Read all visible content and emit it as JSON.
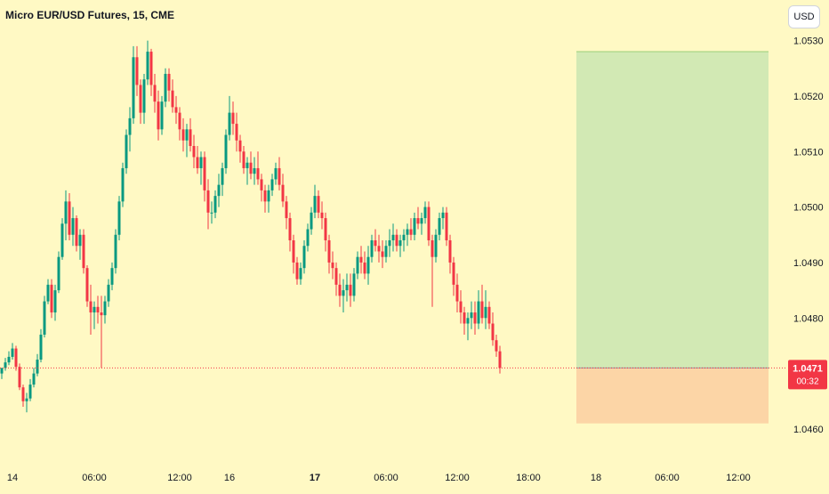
{
  "header": {
    "title": "Micro EUR/USD Futures, 15, CME",
    "currency_button": "USD"
  },
  "price_tag": {
    "price": "1.0471",
    "countdown": "00:32",
    "color": "#f23645"
  },
  "colors": {
    "background": "#fff9c4",
    "up": "#089981",
    "down": "#f23645",
    "profit_zone": "#d2e9b4",
    "loss_zone": "#fcd5a6",
    "price_line": "#f23645",
    "axis_text": "#131722"
  },
  "chart_data": {
    "type": "candlestick",
    "title": "Micro EUR/USD Futures, 15, CME",
    "y_ticks": [
      "1.0530",
      "1.0520",
      "1.0510",
      "1.0500",
      "1.0490",
      "1.0480",
      "1.0470",
      "1.0460"
    ],
    "ylim": [
      1.04555,
      1.05325
    ],
    "x_ticks": [
      {
        "label": "14",
        "bar": 3,
        "bold": false
      },
      {
        "label": "06:00",
        "bar": 26,
        "bold": false
      },
      {
        "label": "12:00",
        "bar": 50,
        "bold": false
      },
      {
        "label": "16",
        "bar": 64,
        "bold": false
      },
      {
        "label": "17",
        "bar": 88,
        "bold": true
      },
      {
        "label": "06:00",
        "bar": 108,
        "bold": false
      },
      {
        "label": "12:00",
        "bar": 128,
        "bold": false
      },
      {
        "label": "18:00",
        "bar": 148,
        "bold": false
      },
      {
        "label": "18",
        "bar": 167,
        "bold": false
      },
      {
        "label": "06:00",
        "bar": 187,
        "bold": false
      },
      {
        "label": "12:00",
        "bar": 207,
        "bold": false
      }
    ],
    "grid": false,
    "current_price": 1.0471,
    "position": {
      "type": "long",
      "entry": 1.0471,
      "target": 1.0528,
      "stop": 1.0461,
      "start_bar": 162,
      "end_bar": 215
    },
    "candles": [
      [
        1.047,
        1.0471,
        1.0469,
        1.0471
      ],
      [
        1.0471,
        1.04728,
        1.04705,
        1.0472
      ],
      [
        1.0472,
        1.0474,
        1.04715,
        1.0473
      ],
      [
        1.0473,
        1.04755,
        1.04725,
        1.04745
      ],
      [
        1.04745,
        1.0475,
        1.04705,
        1.04712
      ],
      [
        1.04712,
        1.04718,
        1.0467,
        1.04675
      ],
      [
        1.04675,
        1.0468,
        1.0464,
        1.0465
      ],
      [
        1.0465,
        1.04665,
        1.0463,
        1.04655
      ],
      [
        1.04655,
        1.0469,
        1.0465,
        1.0468
      ],
      [
        1.0468,
        1.0471,
        1.04675,
        1.047
      ],
      [
        1.047,
        1.04735,
        1.04695,
        1.04725
      ],
      [
        1.04725,
        1.0478,
        1.0472,
        1.0477
      ],
      [
        1.0477,
        1.0484,
        1.04765,
        1.0483
      ],
      [
        1.0483,
        1.0487,
        1.04825,
        1.0486
      ],
      [
        1.0486,
        1.0487,
        1.048,
        1.0481
      ],
      [
        1.0481,
        1.0486,
        1.04795,
        1.0485
      ],
      [
        1.0485,
        1.0492,
        1.04845,
        1.0491
      ],
      [
        1.0491,
        1.0498,
        1.04905,
        1.0497
      ],
      [
        1.0497,
        1.0503,
        1.0494,
        1.0501
      ],
      [
        1.0501,
        1.05025,
        1.0494,
        1.0495
      ],
      [
        1.0495,
        1.05,
        1.0493,
        1.0498
      ],
      [
        1.0498,
        1.04985,
        1.0492,
        1.0493
      ],
      [
        1.0493,
        1.0496,
        1.04905,
        1.0495
      ],
      [
        1.0495,
        1.0496,
        1.0488,
        1.0489
      ],
      [
        1.0489,
        1.04895,
        1.0482,
        1.0483
      ],
      [
        1.0483,
        1.0486,
        1.0477,
        1.0481
      ],
      [
        1.0481,
        1.0483,
        1.0478,
        1.0482
      ],
      [
        1.0482,
        1.0484,
        1.0479,
        1.0481
      ],
      [
        1.0481,
        1.0484,
        1.0471,
        1.04805
      ],
      [
        1.04805,
        1.0484,
        1.0479,
        1.0483
      ],
      [
        1.0483,
        1.0487,
        1.0482,
        1.0486
      ],
      [
        1.0486,
        1.049,
        1.0485,
        1.0489
      ],
      [
        1.0489,
        1.0496,
        1.0488,
        1.0495
      ],
      [
        1.0495,
        1.0502,
        1.0494,
        1.0501
      ],
      [
        1.0501,
        1.0508,
        1.05,
        1.0507
      ],
      [
        1.0507,
        1.0514,
        1.0506,
        1.0513
      ],
      [
        1.0513,
        1.0518,
        1.051,
        1.0516
      ],
      [
        1.0516,
        1.0529,
        1.0515,
        1.0527
      ],
      [
        1.0527,
        1.0529,
        1.052,
        1.0522
      ],
      [
        1.0522,
        1.0523,
        1.0515,
        1.0517
      ],
      [
        1.0517,
        1.0524,
        1.0515,
        1.0523
      ],
      [
        1.0523,
        1.053,
        1.0522,
        1.0528
      ],
      [
        1.0528,
        1.05285,
        1.052,
        1.0522
      ],
      [
        1.0522,
        1.0524,
        1.0517,
        1.0519
      ],
      [
        1.0519,
        1.0521,
        1.0512,
        1.0514
      ],
      [
        1.0514,
        1.052,
        1.0513,
        1.0519
      ],
      [
        1.0519,
        1.0525,
        1.0518,
        1.0524
      ],
      [
        1.0524,
        1.0525,
        1.0519,
        1.0521
      ],
      [
        1.0521,
        1.0523,
        1.0517,
        1.0518
      ],
      [
        1.0518,
        1.052,
        1.0515,
        1.0517
      ],
      [
        1.0517,
        1.0518,
        1.0512,
        1.0514
      ],
      [
        1.0514,
        1.0516,
        1.051,
        1.0512
      ],
      [
        1.0512,
        1.0515,
        1.0509,
        1.0514
      ],
      [
        1.0514,
        1.0516,
        1.051,
        1.0511
      ],
      [
        1.0511,
        1.0513,
        1.0507,
        1.0509
      ],
      [
        1.0509,
        1.0511,
        1.0506,
        1.0507
      ],
      [
        1.0507,
        1.051,
        1.0504,
        1.0509
      ],
      [
        1.0509,
        1.051,
        1.0501,
        1.0503
      ],
      [
        1.0503,
        1.0505,
        1.0496,
        1.0499
      ],
      [
        1.0499,
        1.0501,
        1.0497,
        1.0499
      ],
      [
        1.0499,
        1.0503,
        1.0498,
        1.0502
      ],
      [
        1.0502,
        1.0506,
        1.05,
        1.0504
      ],
      [
        1.0504,
        1.0508,
        1.0502,
        1.0507
      ],
      [
        1.0507,
        1.0514,
        1.0506,
        1.0513
      ],
      [
        1.0513,
        1.052,
        1.0512,
        1.0517
      ],
      [
        1.0517,
        1.0519,
        1.0513,
        1.0515
      ],
      [
        1.0515,
        1.0517,
        1.051,
        1.0512
      ],
      [
        1.0512,
        1.0513,
        1.0508,
        1.051
      ],
      [
        1.051,
        1.0511,
        1.0506,
        1.0507
      ],
      [
        1.0507,
        1.0509,
        1.0504,
        1.0508
      ],
      [
        1.0508,
        1.051,
        1.0505,
        1.0506
      ],
      [
        1.0506,
        1.0509,
        1.0504,
        1.0507
      ],
      [
        1.0507,
        1.051,
        1.0504,
        1.0505
      ],
      [
        1.0505,
        1.0506,
        1.0501,
        1.0503
      ],
      [
        1.0503,
        1.0504,
        1.0499,
        1.0501
      ],
      [
        1.0501,
        1.0504,
        1.0499,
        1.0503
      ],
      [
        1.0503,
        1.0506,
        1.0502,
        1.0505
      ],
      [
        1.0505,
        1.0508,
        1.0504,
        1.0507
      ],
      [
        1.0507,
        1.0509,
        1.0503,
        1.0504
      ],
      [
        1.0504,
        1.0506,
        1.05,
        1.0501
      ],
      [
        1.0501,
        1.0502,
        1.0496,
        1.0498
      ],
      [
        1.0498,
        1.0499,
        1.0492,
        1.0494
      ],
      [
        1.0494,
        1.0495,
        1.0488,
        1.049
      ],
      [
        1.049,
        1.0491,
        1.0486,
        1.0487
      ],
      [
        1.0487,
        1.049,
        1.0486,
        1.0489
      ],
      [
        1.0489,
        1.0494,
        1.0488,
        1.0493
      ],
      [
        1.0493,
        1.0497,
        1.0492,
        1.0496
      ],
      [
        1.0496,
        1.05,
        1.0495,
        1.0499
      ],
      [
        1.0499,
        1.0504,
        1.0498,
        1.0502
      ],
      [
        1.0502,
        1.0503,
        1.0498,
        1.0499
      ],
      [
        1.0499,
        1.0501,
        1.0496,
        1.0498
      ],
      [
        1.0498,
        1.0499,
        1.0492,
        1.0494
      ],
      [
        1.0494,
        1.0495,
        1.0488,
        1.049
      ],
      [
        1.049,
        1.0492,
        1.0487,
        1.0489
      ],
      [
        1.0489,
        1.049,
        1.0484,
        1.0486
      ],
      [
        1.0486,
        1.0488,
        1.0482,
        1.0484
      ],
      [
        1.0484,
        1.0487,
        1.0481,
        1.0485
      ],
      [
        1.0485,
        1.0488,
        1.0483,
        1.0486
      ],
      [
        1.0486,
        1.0488,
        1.0482,
        1.0484
      ],
      [
        1.0484,
        1.0489,
        1.0483,
        1.0488
      ],
      [
        1.0488,
        1.0492,
        1.0487,
        1.0491
      ],
      [
        1.0491,
        1.0493,
        1.0488,
        1.049
      ],
      [
        1.049,
        1.0492,
        1.0487,
        1.0488
      ],
      [
        1.0488,
        1.0493,
        1.0486,
        1.0491
      ],
      [
        1.0491,
        1.0495,
        1.049,
        1.0494
      ],
      [
        1.0494,
        1.0496,
        1.0492,
        1.0493
      ],
      [
        1.0493,
        1.0495,
        1.049,
        1.0492
      ],
      [
        1.0492,
        1.0494,
        1.0489,
        1.0491
      ],
      [
        1.0491,
        1.0494,
        1.049,
        1.0493
      ],
      [
        1.0493,
        1.0496,
        1.0491,
        1.0494
      ],
      [
        1.0494,
        1.0497,
        1.0492,
        1.0495
      ],
      [
        1.0495,
        1.0496,
        1.0492,
        1.0493
      ],
      [
        1.0493,
        1.0495,
        1.0491,
        1.0494
      ],
      [
        1.0494,
        1.0496,
        1.0492,
        1.0495
      ],
      [
        1.0495,
        1.0497,
        1.0493,
        1.0496
      ],
      [
        1.0496,
        1.0498,
        1.0494,
        1.0495
      ],
      [
        1.0495,
        1.0499,
        1.0494,
        1.0498
      ],
      [
        1.0498,
        1.05,
        1.0496,
        1.0497
      ],
      [
        1.0497,
        1.0499,
        1.0495,
        1.0498
      ],
      [
        1.0498,
        1.0501,
        1.0497,
        1.05
      ],
      [
        1.05,
        1.0501,
        1.0493,
        1.0494
      ],
      [
        1.0494,
        1.0495,
        1.0482,
        1.0491
      ],
      [
        1.0491,
        1.0496,
        1.049,
        1.0495
      ],
      [
        1.0495,
        1.0499,
        1.0494,
        1.0498
      ],
      [
        1.0498,
        1.05,
        1.0496,
        1.0499
      ],
      [
        1.0499,
        1.05,
        1.0493,
        1.0494
      ],
      [
        1.0494,
        1.0495,
        1.0488,
        1.049
      ],
      [
        1.049,
        1.0491,
        1.0484,
        1.0486
      ],
      [
        1.0486,
        1.0488,
        1.0481,
        1.0483
      ],
      [
        1.0483,
        1.0485,
        1.0479,
        1.0481
      ],
      [
        1.0481,
        1.0482,
        1.0477,
        1.0479
      ],
      [
        1.0479,
        1.0481,
        1.0476,
        1.048
      ],
      [
        1.048,
        1.0483,
        1.0478,
        1.0481
      ],
      [
        1.0481,
        1.0483,
        1.0477,
        1.0479
      ],
      [
        1.0479,
        1.0485,
        1.0478,
        1.0483
      ],
      [
        1.0483,
        1.0486,
        1.0479,
        1.048
      ],
      [
        1.048,
        1.0485,
        1.0478,
        1.0482
      ],
      [
        1.0482,
        1.0483,
        1.0478,
        1.0479
      ],
      [
        1.0479,
        1.0481,
        1.0475,
        1.0476
      ],
      [
        1.0476,
        1.0477,
        1.0473,
        1.0474
      ],
      [
        1.0474,
        1.0475,
        1.047,
        1.0471
      ]
    ]
  }
}
